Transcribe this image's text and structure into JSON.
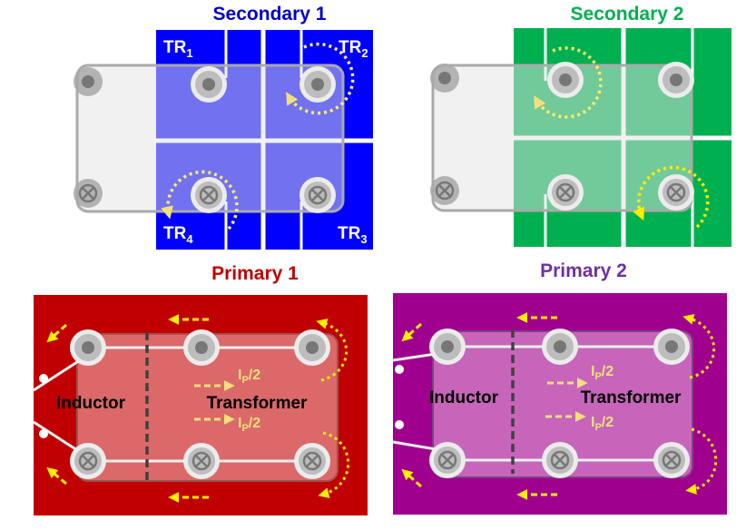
{
  "colors": {
    "secondary1": "#0000ff",
    "secondary1_title": "#0000cc",
    "secondary2": "#00b050",
    "primary1": "#c00000",
    "primary2": "#a0008e",
    "primary2_title": "#7030a0",
    "current_arrow": "#ffee00",
    "current_label": "#f2e07a"
  },
  "secondary1": {
    "title": "Secondary 1",
    "tr1": {
      "main": "TR",
      "sub": "1"
    },
    "tr2": {
      "main": "TR",
      "sub": "2"
    },
    "tr3": {
      "main": "TR",
      "sub": "3"
    },
    "tr4": {
      "main": "TR",
      "sub": "4"
    }
  },
  "secondary2": {
    "title": "Secondary 2"
  },
  "primary1": {
    "title": "Primary 1",
    "inductor_label": "Inductor",
    "transformer_label": "Transformer",
    "current_top": {
      "main": "I",
      "sub": "P",
      "rest": "/2"
    },
    "current_bottom": {
      "main": "I",
      "sub": "P",
      "rest": "/2"
    }
  },
  "primary2": {
    "title": "Primary 2",
    "inductor_label": "Inductor",
    "transformer_label": "Transformer",
    "current_top": {
      "main": "I",
      "sub": "P",
      "rest": "/2"
    },
    "current_bottom": {
      "main": "I",
      "sub": "P",
      "rest": "/2"
    }
  },
  "pin_symbols": {
    "top_row": "dot (current out)",
    "bottom_row": "cross (current in)"
  }
}
